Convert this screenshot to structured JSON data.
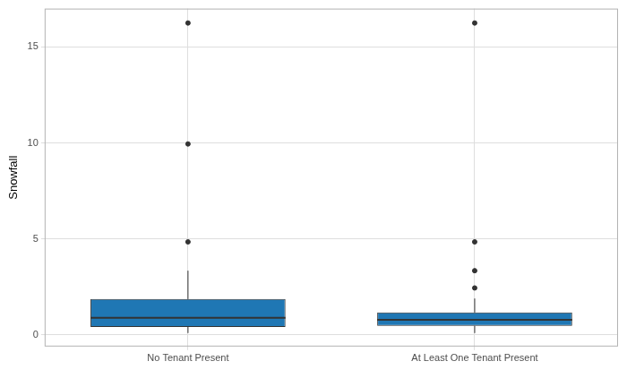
{
  "chart_data": {
    "type": "boxplot",
    "y_label": "Snowfall",
    "categories": [
      "No Tenant Present",
      "At Least One Tenant Present"
    ],
    "boxes": [
      {
        "min": 0.1,
        "q1": 0.42,
        "median": 0.89,
        "q3": 1.87,
        "max": 3.35,
        "outliers": [
          4.85,
          9.95,
          16.25
        ]
      },
      {
        "min": 0.1,
        "q1": 0.47,
        "median": 0.79,
        "q3": 1.17,
        "max": 1.9,
        "outliers": [
          2.45,
          3.35,
          4.85,
          16.25
        ]
      }
    ],
    "color": "#1f77b4",
    "ylim": [
      -0.6,
      17
    ],
    "yticks": [
      0,
      5,
      10,
      15
    ],
    "grid": true
  }
}
